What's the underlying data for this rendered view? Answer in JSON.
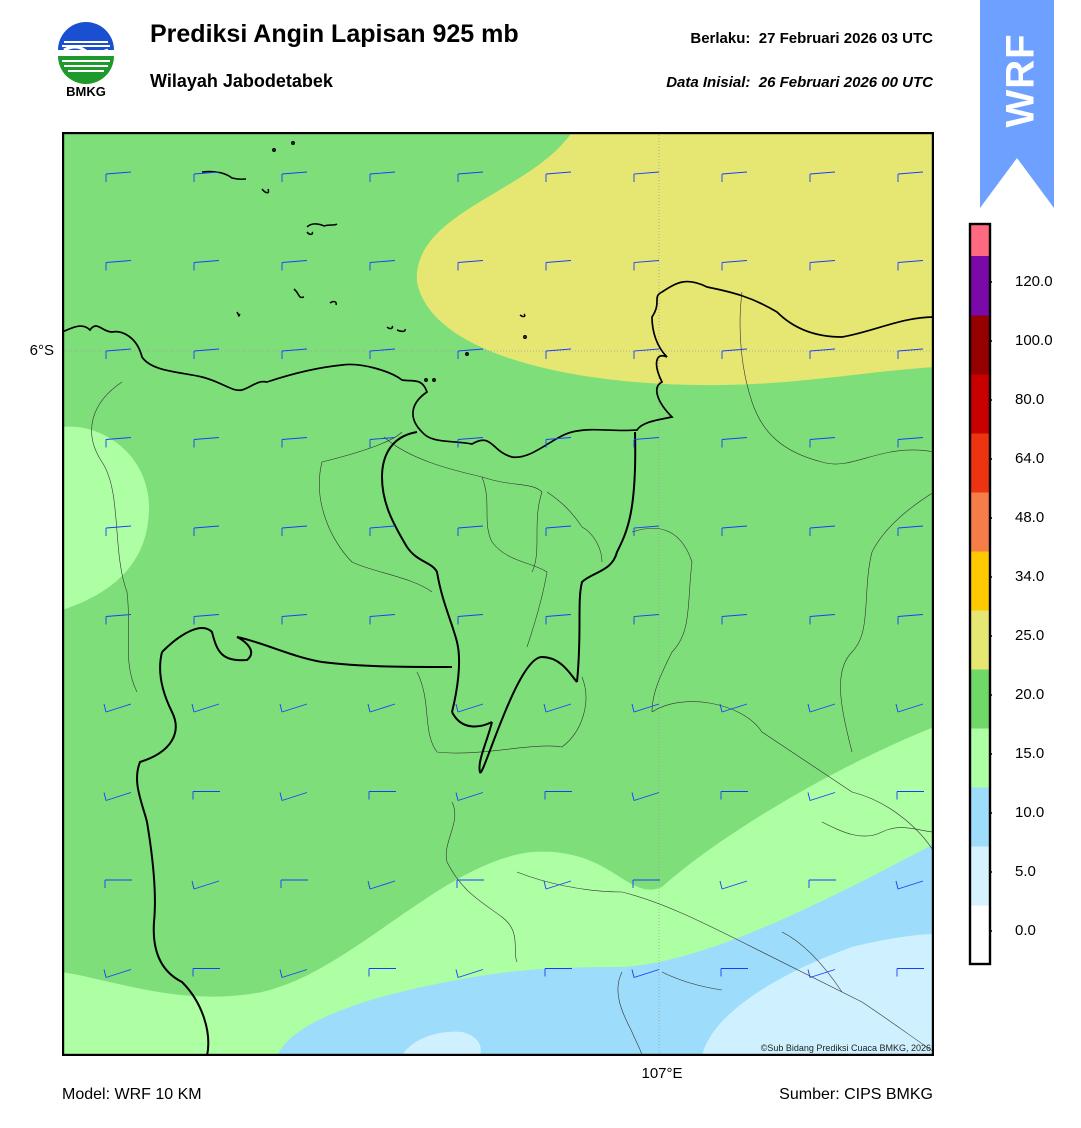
{
  "header": {
    "title": "Prediksi Angin Lapisan 925 mb",
    "subtitle": "Wilayah Jabodetabek",
    "valid_label": "Berlaku:",
    "valid_time": "27 Februari 2026 03 UTC",
    "init_label": "Data Inisial:",
    "init_time": "26 Februari 2026 00 UTC"
  },
  "logo": {
    "icon": "bmkg-logo-icon",
    "text": "BMKG"
  },
  "badge": {
    "icon": "wrf-badge-icon",
    "text": "WRF"
  },
  "map": {
    "lat_label": "6°S",
    "lon_label": "107°E",
    "copyright": "©Sub Bidang Prediksi Cuaca BMKG, 2026",
    "colors": {
      "land_green": "#7edf7a",
      "light_green": "#aefea4",
      "yellow": "#e6e673",
      "light_blue": "#9ddcfa",
      "pale_blue": "#cff1ff",
      "barb": "#1a3cff"
    }
  },
  "colorbar": {
    "levels": [
      {
        "label": "0.0",
        "color": "#ffffff"
      },
      {
        "label": "5.0",
        "color": "#d6f2ff"
      },
      {
        "label": "10.0",
        "color": "#9ddcfa"
      },
      {
        "label": "15.0",
        "color": "#aefea4"
      },
      {
        "label": "20.0",
        "color": "#6fd867"
      },
      {
        "label": "25.0",
        "color": "#e6e673"
      },
      {
        "label": "34.0",
        "color": "#ffc800"
      },
      {
        "label": "48.0",
        "color": "#f77d48"
      },
      {
        "label": "64.0",
        "color": "#ee3311"
      },
      {
        "label": "80.0",
        "color": "#c80000"
      },
      {
        "label": "100.0",
        "color": "#960000"
      },
      {
        "label": "120.0",
        "color": "#7a0aa8"
      }
    ],
    "top_color": "#ff6a80"
  },
  "footer": {
    "model": "Model: WRF 10 KM",
    "source": "Sumber: CIPS BMKG"
  }
}
